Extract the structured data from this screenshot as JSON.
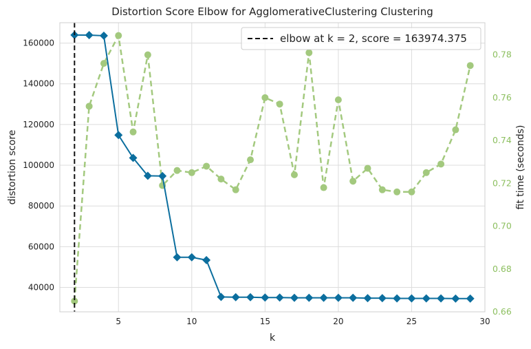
{
  "chart_data": {
    "type": "line",
    "title": "Distortion Score Elbow for AgglomerativeClustering Clustering",
    "xlabel": "k",
    "ylabel": "distortion score",
    "y2label": "fit time (seconds)",
    "xlim": [
      1,
      30
    ],
    "ylim": [
      28000,
      170000
    ],
    "y2lim": [
      0.66,
      0.795
    ],
    "x_ticks": [
      5,
      10,
      15,
      20,
      25,
      30
    ],
    "y_ticks": [
      40000,
      60000,
      80000,
      100000,
      120000,
      140000,
      160000
    ],
    "y_tick_labels": [
      "40000",
      "60000",
      "80000",
      "100000",
      "120000",
      "140000",
      "160000"
    ],
    "y2_ticks": [
      0.66,
      0.68,
      0.7,
      0.72,
      0.74,
      0.76,
      0.78
    ],
    "y2_tick_labels": [
      "0.66",
      "0.68",
      "0.70",
      "0.72",
      "0.74",
      "0.76",
      "0.78"
    ],
    "grid": true,
    "legend_position": "top-right",
    "elbow": {
      "k": 2,
      "score": 163974.375,
      "label": "elbow at k = 2, score = 163974.375"
    },
    "x": [
      2,
      3,
      4,
      5,
      6,
      7,
      8,
      9,
      10,
      11,
      12,
      13,
      14,
      15,
      16,
      17,
      18,
      19,
      20,
      21,
      22,
      23,
      24,
      25,
      26,
      27,
      28,
      29
    ],
    "series": [
      {
        "axis": "left",
        "values": [
          163974,
          163900,
          163600,
          114800,
          103600,
          94800,
          94700,
          54800,
          54800,
          53400,
          35300,
          35200,
          35200,
          35000,
          35000,
          34900,
          34900,
          34900,
          34900,
          34900,
          34700,
          34700,
          34600,
          34600,
          34600,
          34600,
          34500,
          34500
        ]
      },
      {
        "axis": "right",
        "values": [
          0.665,
          0.756,
          0.776,
          0.789,
          0.744,
          0.78,
          0.719,
          0.726,
          0.725,
          0.728,
          0.722,
          0.717,
          0.731,
          0.76,
          0.757,
          0.724,
          0.781,
          0.718,
          0.759,
          0.721,
          0.727,
          0.717,
          0.716,
          0.716,
          0.725,
          0.729,
          0.745,
          0.775
        ]
      }
    ],
    "colors": {
      "score": "#0b6e9e",
      "fit_time": "#a3c97e",
      "fit_time_axis": "#8cbf5f",
      "elbow": "#111111",
      "grid": "#dcdcdc"
    }
  }
}
